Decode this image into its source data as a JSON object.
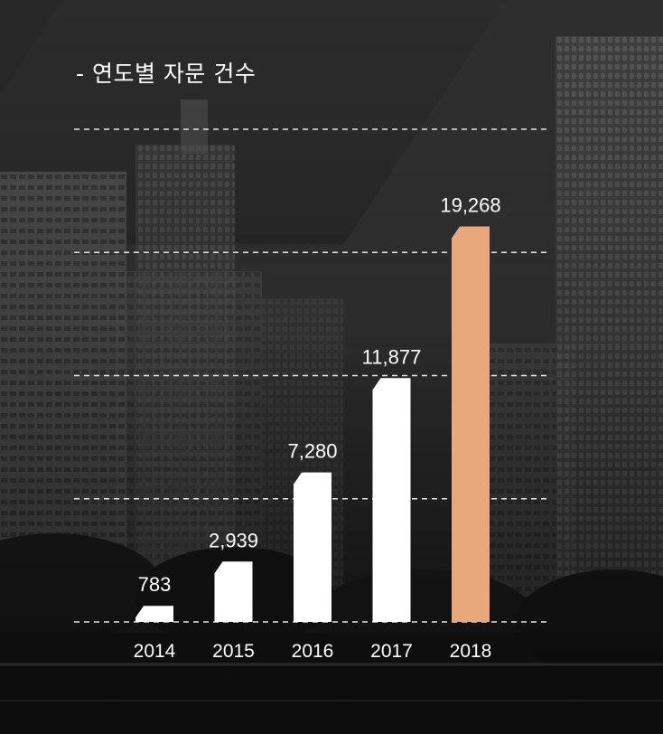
{
  "chart_data": {
    "type": "bar",
    "title": "- 연도별 자문 건수",
    "categories": [
      "2014",
      "2015",
      "2016",
      "2017",
      "2018"
    ],
    "values": [
      783,
      2939,
      7280,
      11877,
      19268
    ],
    "value_labels": [
      "783",
      "2,939",
      "7,280",
      "11,877",
      "19,268"
    ],
    "ylim": [
      0,
      24000
    ],
    "grid": "dashed horizontal",
    "colors": {
      "bar": "#ffffff",
      "highlight_bar": "#e9a77c",
      "text": "#ffffff",
      "grid": "#e6e6e6"
    },
    "highlight_index": 4
  }
}
